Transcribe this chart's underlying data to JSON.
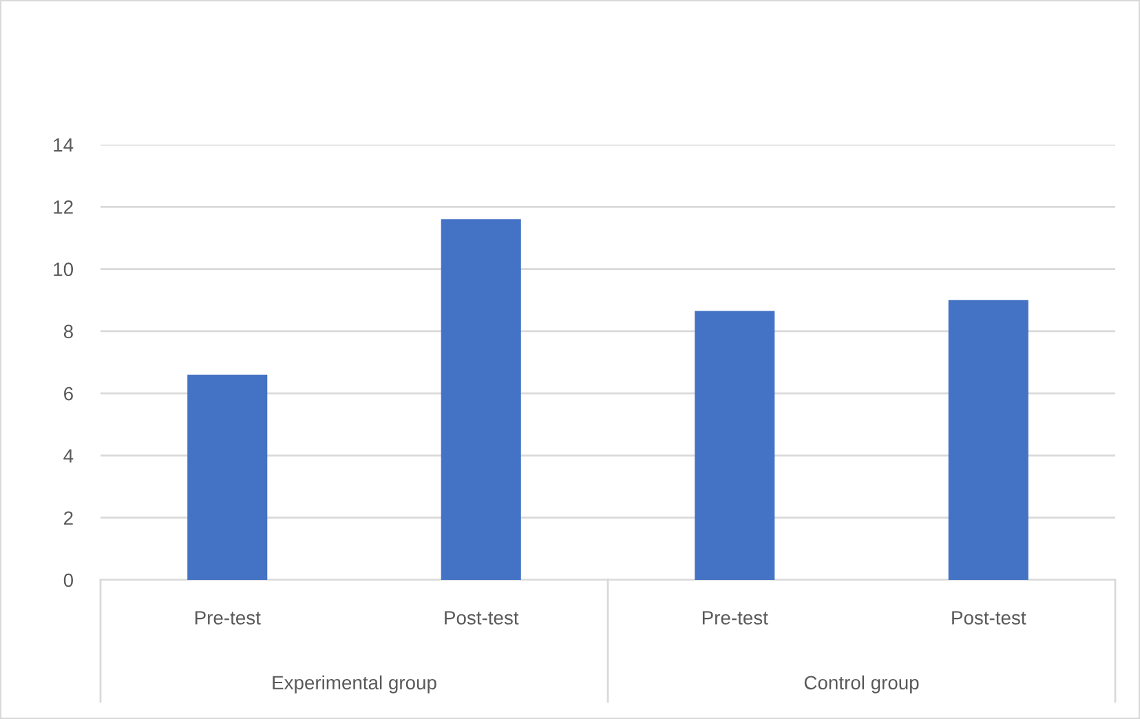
{
  "chart_data": {
    "type": "bar",
    "categories": [
      "Pre-test",
      "Post-test",
      "Pre-test",
      "Post-test"
    ],
    "values": [
      6.6,
      11.6,
      8.65,
      9.0
    ],
    "color": "#4472c4",
    "ylim": [
      0,
      14
    ],
    "yticks": [
      0,
      2,
      4,
      6,
      8,
      10,
      12,
      14
    ],
    "grid": "y",
    "legend": false,
    "annotations": [
      "Experimental group",
      "Control group"
    ]
  }
}
